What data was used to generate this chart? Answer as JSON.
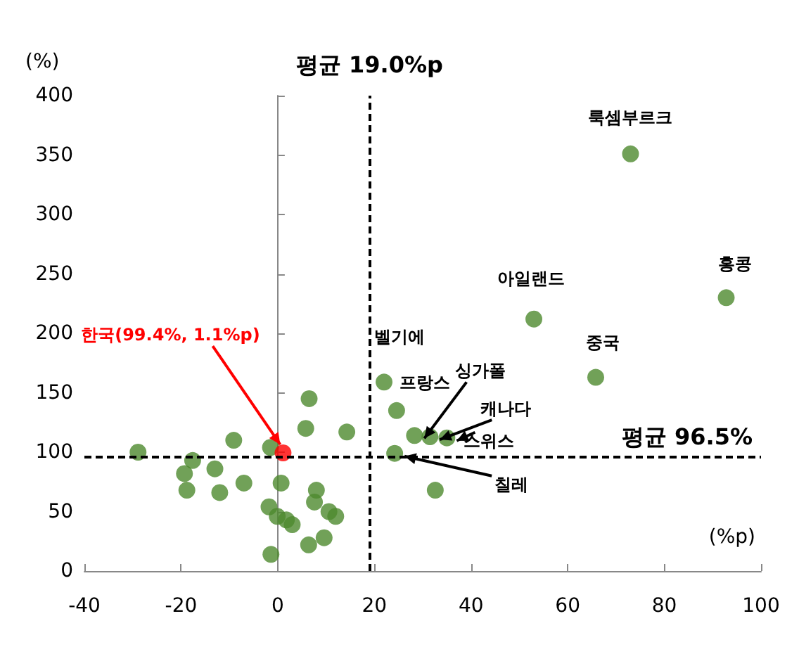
{
  "chart_data": {
    "type": "scatter",
    "xlabel": "(%p)",
    "ylabel": "(%)",
    "xlim": [
      -40,
      100
    ],
    "xticks": [
      -40,
      -20,
      0,
      20,
      40,
      60,
      80,
      100
    ],
    "ylim": [
      0,
      400
    ],
    "yticks": [
      0,
      50,
      100,
      150,
      200,
      250,
      300,
      350,
      400
    ],
    "marker": "circle",
    "series": [
      {
        "color": "#4e8a2e",
        "x": [
          73,
          92.8,
          53,
          65.8,
          22,
          24.6,
          28.3,
          31.5,
          35,
          24.2,
          32.6,
          14.3,
          -28.9,
          -17.6,
          -19.3,
          -18.8,
          -13,
          -12,
          -9.1,
          -7,
          -1.5,
          0.7,
          -1.8,
          -0.1,
          1.8,
          3,
          -1.4,
          6.5,
          5.8,
          8,
          7.6,
          10.6,
          12,
          9.6,
          6.4
        ],
        "values": [
          351,
          230,
          212,
          163,
          159,
          135,
          114,
          113,
          112,
          99,
          68,
          117,
          100,
          93,
          82,
          68,
          86,
          66,
          110,
          74,
          104,
          74,
          54,
          46,
          43,
          39,
          14,
          145,
          120,
          68,
          58,
          50,
          46,
          28,
          22
        ]
      },
      {
        "color": "#ff0000",
        "x": [
          1.1
        ],
        "values": [
          99.4
        ]
      }
    ],
    "ref_lines": [
      {
        "axis": "x",
        "value": 19.0,
        "label": "평균 19.0%p",
        "line_style": "dashed",
        "color": "#000000"
      },
      {
        "axis": "y",
        "value": 96.5,
        "label": "평균 96.5%",
        "line_style": "dashed",
        "color": "#000000"
      }
    ],
    "annotations": [
      {
        "text": "룩셈부르크",
        "x": 73,
        "y": 351
      },
      {
        "text": "홍콩",
        "x": 92.8,
        "y": 230
      },
      {
        "text": "아일랜드",
        "x": 53,
        "y": 212
      },
      {
        "text": "중국",
        "x": 65.8,
        "y": 163
      },
      {
        "text": "벨기에",
        "x": 22,
        "y": 159
      },
      {
        "text": "프랑스",
        "x": 24.6,
        "y": 135
      },
      {
        "text": "싱가폴",
        "x": 28.3,
        "y": 114
      },
      {
        "text": "캐나다",
        "x": 31.5,
        "y": 113
      },
      {
        "text": "스위스",
        "x": 35,
        "y": 112
      },
      {
        "text": "칠레",
        "x": 24.2,
        "y": 99
      },
      {
        "text": "한국(99.4%, 1.1%p)",
        "x": 1.1,
        "y": 99.4
      }
    ]
  }
}
